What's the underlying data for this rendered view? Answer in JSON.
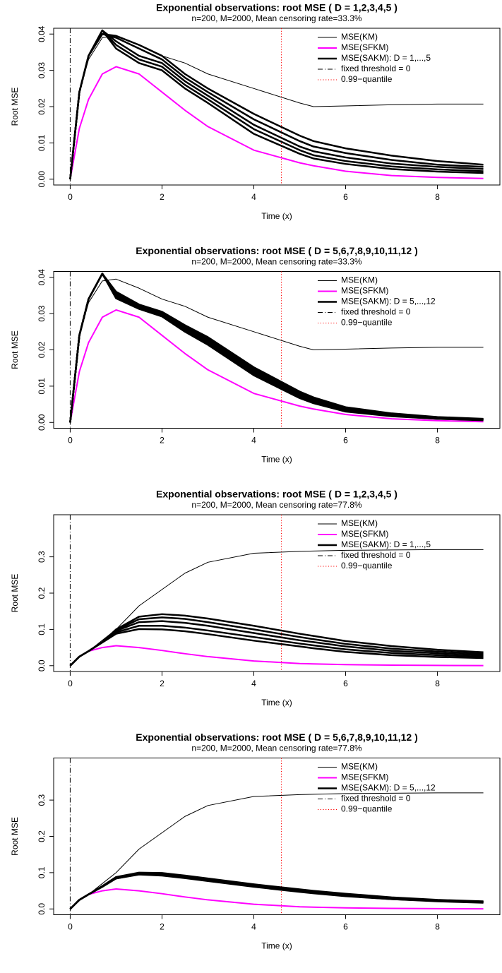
{
  "chart_data": [
    {
      "type": "line",
      "title": "Exponential observations: root MSE ( D = 1,2,3,4,5 )",
      "subtitle": "n=200,  M=2000,  Mean censoring rate=33.3%",
      "xlabel": "Time (x)",
      "ylabel": "Root MSE",
      "x": [
        0,
        0.2,
        0.4,
        0.7,
        1,
        1.5,
        2,
        2.5,
        3,
        4,
        5,
        5.3,
        6,
        7,
        8,
        9
      ],
      "xlim": [
        -0.36,
        9.36
      ],
      "xticks": [
        0,
        2,
        4,
        6,
        8
      ],
      "ylim": [
        -0.0016,
        0.0416
      ],
      "yticks": [
        {
          "value": 0,
          "label": "0.00"
        },
        0.01,
        0.02,
        0.03,
        0.04
      ],
      "legend": "topright",
      "series": [
        {
          "name": "MSE(KM)",
          "color": "#000000",
          "linewidth": 1,
          "values": [
            0,
            0.024,
            0.033,
            0.039,
            0.0395,
            0.037,
            0.034,
            0.032,
            0.029,
            0.025,
            0.021,
            0.02,
            0.0202,
            0.0205,
            0.0207,
            0.0207
          ]
        },
        {
          "name": "MSE(SFKM)",
          "color": "#ff00ff",
          "linewidth": 2,
          "values": [
            0,
            0.014,
            0.022,
            0.029,
            0.031,
            0.029,
            0.024,
            0.019,
            0.0145,
            0.008,
            0.0045,
            0.0037,
            0.0022,
            0.001,
            0.0005,
            0.0002
          ]
        },
        {
          "name": "MSE(SAKM): D = 1,...,5",
          "color": "#000000",
          "linewidth": 2.5,
          "values": [
            [
              0,
              0.024,
              0.034,
              0.04,
              0.0395,
              0.037,
              0.034,
              0.029,
              0.025,
              0.018,
              0.012,
              0.0105,
              0.0085,
              0.0065,
              0.005,
              0.004
            ],
            [
              0,
              0.024,
              0.034,
              0.04,
              0.039,
              0.036,
              0.033,
              0.028,
              0.024,
              0.0165,
              0.0105,
              0.009,
              0.0072,
              0.0053,
              0.004,
              0.0034
            ],
            [
              0,
              0.024,
              0.034,
              0.041,
              0.038,
              0.034,
              0.032,
              0.027,
              0.023,
              0.015,
              0.009,
              0.0077,
              0.006,
              0.0043,
              0.0034,
              0.0028
            ],
            [
              0,
              0.024,
              0.034,
              0.041,
              0.037,
              0.033,
              0.031,
              0.026,
              0.022,
              0.0138,
              0.008,
              0.0066,
              0.005,
              0.0035,
              0.0027,
              0.0022
            ],
            [
              0,
              0.024,
              0.034,
              0.041,
              0.036,
              0.032,
              0.03,
              0.025,
              0.021,
              0.0125,
              0.007,
              0.0057,
              0.0042,
              0.0028,
              0.0021,
              0.0017
            ]
          ]
        }
      ],
      "vlines": [
        {
          "name": "fixed threshold = 0",
          "x": 0,
          "color": "#000000",
          "dash": "dashdot"
        },
        {
          "name": "0.99−quantile",
          "x": 4.6,
          "color": "#ff0000",
          "dash": "dot"
        }
      ]
    },
    {
      "type": "line",
      "title": "Exponential observations: root MSE ( D = 5,6,7,8,9,10,11,12 )",
      "subtitle": "n=200,  M=2000,  Mean censoring rate=33.3%",
      "xlabel": "Time (x)",
      "ylabel": "Root MSE",
      "x": [
        0,
        0.2,
        0.4,
        0.7,
        1,
        1.5,
        2,
        2.5,
        3,
        4,
        5,
        5.3,
        6,
        7,
        8,
        9
      ],
      "xlim": [
        -0.36,
        9.36
      ],
      "xticks": [
        0,
        2,
        4,
        6,
        8
      ],
      "ylim": [
        -0.0016,
        0.0416
      ],
      "yticks": [
        {
          "value": 0,
          "label": "0.00"
        },
        0.01,
        0.02,
        0.03,
        0.04
      ],
      "legend": "topright",
      "series": [
        {
          "name": "MSE(KM)",
          "color": "#000000",
          "linewidth": 1,
          "values": [
            0,
            0.024,
            0.033,
            0.039,
            0.0395,
            0.037,
            0.034,
            0.032,
            0.029,
            0.025,
            0.021,
            0.02,
            0.0202,
            0.0205,
            0.0207,
            0.0207
          ]
        },
        {
          "name": "MSE(SFKM)",
          "color": "#ff00ff",
          "linewidth": 2,
          "values": [
            0,
            0.014,
            0.022,
            0.029,
            0.031,
            0.029,
            0.024,
            0.019,
            0.0145,
            0.008,
            0.0045,
            0.0037,
            0.0022,
            0.001,
            0.0005,
            0.0002
          ]
        },
        {
          "name": "MSE(SAKM): D = 5,...,12",
          "color": "#000000",
          "linewidth": 2.5,
          "values": [
            [
              0,
              0.024,
              0.034,
              0.041,
              0.036,
              0.0325,
              0.0305,
              0.0268,
              0.0235,
              0.0152,
              0.0085,
              0.0069,
              0.0042,
              0.0025,
              0.0015,
              0.001
            ],
            [
              0,
              0.024,
              0.034,
              0.041,
              0.0358,
              0.0323,
              0.0303,
              0.0265,
              0.0232,
              0.0148,
              0.0082,
              0.0066,
              0.004,
              0.0023,
              0.0014,
              0.0009
            ],
            [
              0,
              0.024,
              0.034,
              0.041,
              0.0355,
              0.0322,
              0.0302,
              0.0263,
              0.0229,
              0.0145,
              0.0079,
              0.0063,
              0.0038,
              0.0022,
              0.0013,
              0.0009
            ],
            [
              0,
              0.024,
              0.034,
              0.041,
              0.0352,
              0.032,
              0.03,
              0.026,
              0.0226,
              0.0142,
              0.0077,
              0.0061,
              0.0036,
              0.0021,
              0.0012,
              0.0008
            ],
            [
              0,
              0.024,
              0.034,
              0.041,
              0.035,
              0.0318,
              0.0298,
              0.0258,
              0.0223,
              0.0139,
              0.0074,
              0.0059,
              0.0034,
              0.002,
              0.0012,
              0.0008
            ],
            [
              0,
              0.024,
              0.034,
              0.041,
              0.0347,
              0.0316,
              0.0296,
              0.0255,
              0.022,
              0.0136,
              0.0072,
              0.0057,
              0.0033,
              0.0019,
              0.0011,
              0.0007
            ],
            [
              0,
              0.024,
              0.034,
              0.041,
              0.0345,
              0.0315,
              0.0294,
              0.0252,
              0.0217,
              0.0133,
              0.0069,
              0.0055,
              0.0031,
              0.0018,
              0.001,
              0.0007
            ],
            [
              0,
              0.024,
              0.034,
              0.041,
              0.0342,
              0.0313,
              0.0292,
              0.025,
              0.0214,
              0.013,
              0.0067,
              0.0053,
              0.003,
              0.0017,
              0.001,
              0.0006
            ]
          ]
        }
      ],
      "vlines": [
        {
          "name": "fixed threshold = 0",
          "x": 0,
          "color": "#000000",
          "dash": "dashdot"
        },
        {
          "name": "0.99−quantile",
          "x": 4.6,
          "color": "#ff0000",
          "dash": "dot"
        }
      ]
    },
    {
      "type": "line",
      "title": "Exponential observations: root MSE ( D = 1,2,3,4,5 )",
      "subtitle": "n=200,  M=2000,  Mean censoring rate=77.8%",
      "xlabel": "Time (x)",
      "ylabel": "Root MSE",
      "x": [
        0,
        0.2,
        0.4,
        0.7,
        1,
        1.5,
        2,
        2.5,
        3,
        4,
        5,
        5.3,
        6,
        7,
        8,
        9
      ],
      "xlim": [
        -0.36,
        9.36
      ],
      "xticks": [
        0,
        2,
        4,
        6,
        8
      ],
      "ylim": [
        -0.016,
        0.416
      ],
      "yticks": [
        {
          "value": 0,
          "label": "0.0"
        },
        0.1,
        0.2,
        0.3
      ],
      "legend": "topright",
      "series": [
        {
          "name": "MSE(KM)",
          "color": "#000000",
          "linewidth": 1,
          "values": [
            0,
            0.025,
            0.04,
            0.07,
            0.1,
            0.165,
            0.21,
            0.255,
            0.285,
            0.31,
            0.315,
            0.316,
            0.318,
            0.319,
            0.32,
            0.32
          ]
        },
        {
          "name": "MSE(SFKM)",
          "color": "#ff00ff",
          "linewidth": 2,
          "values": [
            0,
            0.025,
            0.04,
            0.05,
            0.055,
            0.05,
            0.042,
            0.033,
            0.025,
            0.013,
            0.006,
            0.005,
            0.003,
            0.0015,
            0.0007,
            0.0003
          ]
        },
        {
          "name": "MSE(SAKM): D = 1,...,5",
          "color": "#000000",
          "linewidth": 2.5,
          "values": [
            [
              0,
              0.025,
              0.04,
              0.065,
              0.1,
              0.135,
              0.142,
              0.138,
              0.13,
              0.11,
              0.088,
              0.082,
              0.068,
              0.054,
              0.044,
              0.037
            ],
            [
              0,
              0.025,
              0.04,
              0.065,
              0.098,
              0.128,
              0.133,
              0.129,
              0.12,
              0.1,
              0.079,
              0.073,
              0.06,
              0.047,
              0.039,
              0.033
            ],
            [
              0,
              0.025,
              0.04,
              0.065,
              0.096,
              0.12,
              0.123,
              0.118,
              0.11,
              0.09,
              0.07,
              0.065,
              0.053,
              0.041,
              0.034,
              0.029
            ],
            [
              0,
              0.025,
              0.04,
              0.065,
              0.092,
              0.11,
              0.11,
              0.105,
              0.097,
              0.079,
              0.061,
              0.056,
              0.045,
              0.035,
              0.029,
              0.025
            ],
            [
              0,
              0.025,
              0.04,
              0.064,
              0.088,
              0.101,
              0.1,
              0.095,
              0.087,
              0.069,
              0.053,
              0.048,
              0.038,
              0.029,
              0.024,
              0.021
            ]
          ]
        }
      ],
      "vlines": [
        {
          "name": "fixed threshold = 0",
          "x": 0,
          "color": "#000000",
          "dash": "dashdot"
        },
        {
          "name": "0.99−quantile",
          "x": 4.6,
          "color": "#ff0000",
          "dash": "dot"
        }
      ]
    },
    {
      "type": "line",
      "title": "Exponential observations: root MSE ( D = 5,6,7,8,9,10,11,12 )",
      "subtitle": "n=200,  M=2000,  Mean censoring rate=77.8%",
      "xlabel": "Time (x)",
      "ylabel": "Root MSE",
      "x": [
        0,
        0.2,
        0.4,
        0.7,
        1,
        1.5,
        2,
        2.5,
        3,
        4,
        5,
        5.3,
        6,
        7,
        8,
        9
      ],
      "xlim": [
        -0.36,
        9.36
      ],
      "xticks": [
        0,
        2,
        4,
        6,
        8
      ],
      "ylim": [
        -0.016,
        0.416
      ],
      "yticks": [
        {
          "value": 0,
          "label": "0.0"
        },
        0.1,
        0.2,
        0.3
      ],
      "legend": "topright",
      "series": [
        {
          "name": "MSE(KM)",
          "color": "#000000",
          "linewidth": 1,
          "values": [
            0,
            0.025,
            0.04,
            0.07,
            0.1,
            0.165,
            0.21,
            0.255,
            0.285,
            0.31,
            0.315,
            0.316,
            0.318,
            0.319,
            0.32,
            0.32
          ]
        },
        {
          "name": "MSE(SFKM)",
          "color": "#ff00ff",
          "linewidth": 2,
          "values": [
            0,
            0.025,
            0.04,
            0.05,
            0.055,
            0.05,
            0.042,
            0.033,
            0.025,
            0.013,
            0.006,
            0.005,
            0.003,
            0.0015,
            0.0007,
            0.0003
          ]
        },
        {
          "name": "MSE(SAKM): D = 5,...,12",
          "color": "#000000",
          "linewidth": 2.5,
          "values": [
            [
              0,
              0.025,
              0.04,
              0.063,
              0.088,
              0.1,
              0.099,
              0.092,
              0.084,
              0.068,
              0.054,
              0.05,
              0.042,
              0.032,
              0.025,
              0.021
            ],
            [
              0,
              0.025,
              0.04,
              0.063,
              0.087,
              0.099,
              0.098,
              0.091,
              0.083,
              0.067,
              0.053,
              0.049,
              0.041,
              0.031,
              0.024,
              0.02
            ],
            [
              0,
              0.025,
              0.04,
              0.062,
              0.086,
              0.098,
              0.097,
              0.09,
              0.082,
              0.066,
              0.052,
              0.048,
              0.04,
              0.03,
              0.024,
              0.02
            ],
            [
              0,
              0.025,
              0.04,
              0.062,
              0.086,
              0.098,
              0.096,
              0.089,
              0.081,
              0.065,
              0.051,
              0.047,
              0.039,
              0.03,
              0.023,
              0.019
            ],
            [
              0,
              0.025,
              0.04,
              0.062,
              0.085,
              0.097,
              0.095,
              0.088,
              0.08,
              0.064,
              0.05,
              0.046,
              0.038,
              0.029,
              0.023,
              0.019
            ],
            [
              0,
              0.025,
              0.04,
              0.062,
              0.085,
              0.096,
              0.094,
              0.087,
              0.079,
              0.063,
              0.049,
              0.045,
              0.037,
              0.028,
              0.022,
              0.018
            ],
            [
              0,
              0.025,
              0.04,
              0.061,
              0.084,
              0.096,
              0.093,
              0.086,
              0.078,
              0.062,
              0.048,
              0.044,
              0.036,
              0.027,
              0.022,
              0.018
            ],
            [
              0,
              0.025,
              0.04,
              0.061,
              0.084,
              0.095,
              0.092,
              0.085,
              0.077,
              0.061,
              0.047,
              0.043,
              0.035,
              0.027,
              0.021,
              0.017
            ]
          ]
        }
      ],
      "vlines": [
        {
          "name": "fixed threshold = 0",
          "x": 0,
          "color": "#000000",
          "dash": "dashdot"
        },
        {
          "name": "0.99−quantile",
          "x": 4.6,
          "color": "#ff0000",
          "dash": "dot"
        }
      ]
    }
  ]
}
